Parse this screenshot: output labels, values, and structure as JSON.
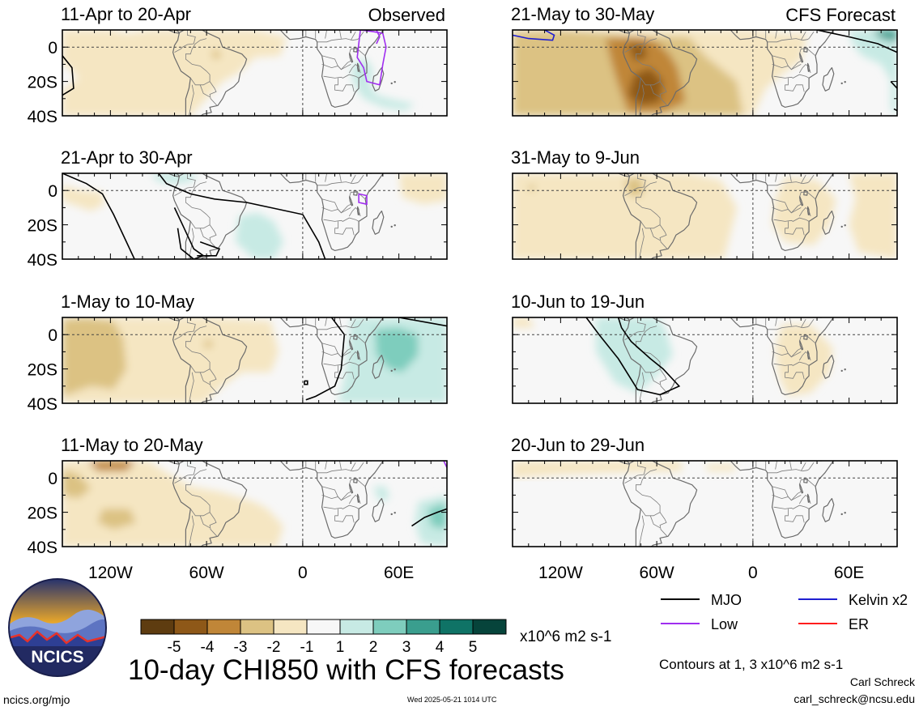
{
  "panels": [
    {
      "col": 0,
      "row": 0,
      "title": "11-Apr to 20-Apr",
      "tag": "Observed"
    },
    {
      "col": 0,
      "row": 1,
      "title": "21-Apr to 30-Apr",
      "tag": ""
    },
    {
      "col": 0,
      "row": 2,
      "title": "1-May to 10-May",
      "tag": ""
    },
    {
      "col": 0,
      "row": 3,
      "title": "11-May to 20-May",
      "tag": ""
    },
    {
      "col": 1,
      "row": 0,
      "title": "21-May to 30-May",
      "tag": "CFS Forecast"
    },
    {
      "col": 1,
      "row": 1,
      "title": "31-May to 9-Jun",
      "tag": ""
    },
    {
      "col": 1,
      "row": 2,
      "title": "10-Jun to 19-Jun",
      "tag": ""
    },
    {
      "col": 1,
      "row": 3,
      "title": "20-Jun to 29-Jun",
      "tag": ""
    }
  ],
  "lat_labels": [
    "0",
    "20S",
    "40S"
  ],
  "lon_labels": [
    "120W",
    "60W",
    "0",
    "60E"
  ],
  "colorbar": {
    "colors": [
      "#5e3c10",
      "#8e5818",
      "#c08638",
      "#dcc283",
      "#f5e6c2",
      "#f7f7f7",
      "#c7eae4",
      "#7ecdbd",
      "#3a9e8e",
      "#0f7366",
      "#06443b"
    ],
    "tick_labels": [
      "-5",
      "-4",
      "-3",
      "-2",
      "-1",
      "1",
      "2",
      "3",
      "4",
      "5"
    ],
    "units": "x10^6 m2 s-1"
  },
  "legend": {
    "items": [
      {
        "label": "MJO",
        "color": "#000000"
      },
      {
        "label": "Kelvin x2",
        "color": "#1f1fd1"
      },
      {
        "label": "Low",
        "color": "#a02ef0"
      },
      {
        "label": "ER",
        "color": "#ff1d1d"
      }
    ],
    "contour_note": "Contours at 1, 3 x10^6 m2 s-1"
  },
  "main_title": "10-day CHI850 with CFS forecasts",
  "logo_text": "NCICS",
  "footer": {
    "url": "ncics.org/mjo",
    "timestamp": "Wed 2025-05-21 1014 UTC",
    "author": "Carl Schreck",
    "email": "carl_schreck@ncsu.edu"
  }
}
